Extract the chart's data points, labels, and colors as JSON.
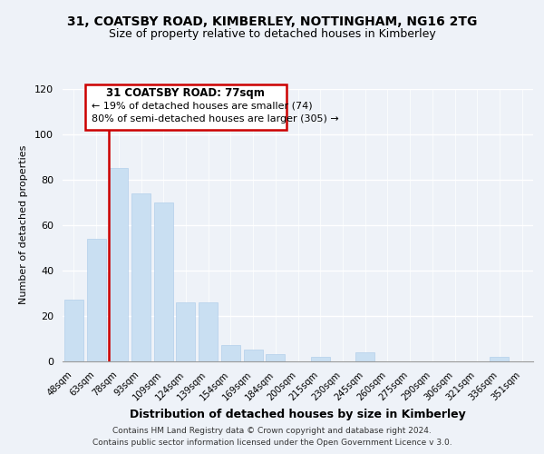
{
  "title": "31, COATSBY ROAD, KIMBERLEY, NOTTINGHAM, NG16 2TG",
  "subtitle": "Size of property relative to detached houses in Kimberley",
  "xlabel": "Distribution of detached houses by size in Kimberley",
  "ylabel": "Number of detached properties",
  "bar_labels": [
    "48sqm",
    "63sqm",
    "78sqm",
    "93sqm",
    "109sqm",
    "124sqm",
    "139sqm",
    "154sqm",
    "169sqm",
    "184sqm",
    "200sqm",
    "215sqm",
    "230sqm",
    "245sqm",
    "260sqm",
    "275sqm",
    "290sqm",
    "306sqm",
    "321sqm",
    "336sqm",
    "351sqm"
  ],
  "bar_values": [
    27,
    54,
    85,
    74,
    70,
    26,
    26,
    7,
    5,
    3,
    0,
    2,
    0,
    4,
    0,
    0,
    0,
    0,
    0,
    2,
    0
  ],
  "bar_color": "#c9dff2",
  "highlight_bar_index": 2,
  "highlight_line_color": "#cc0000",
  "ylim": [
    0,
    120
  ],
  "yticks": [
    0,
    20,
    40,
    60,
    80,
    100,
    120
  ],
  "annotation_title": "31 COATSBY ROAD: 77sqm",
  "annotation_line1": "← 19% of detached houses are smaller (74)",
  "annotation_line2": "80% of semi-detached houses are larger (305) →",
  "annotation_box_color": "#ffffff",
  "annotation_box_edge": "#cc0000",
  "footer_line1": "Contains HM Land Registry data © Crown copyright and database right 2024.",
  "footer_line2": "Contains public sector information licensed under the Open Government Licence v 3.0.",
  "background_color": "#eef2f8",
  "plot_background": "#eef2f8",
  "title_fontsize": 10,
  "subtitle_fontsize": 9,
  "xlabel_fontsize": 9,
  "ylabel_fontsize": 8
}
